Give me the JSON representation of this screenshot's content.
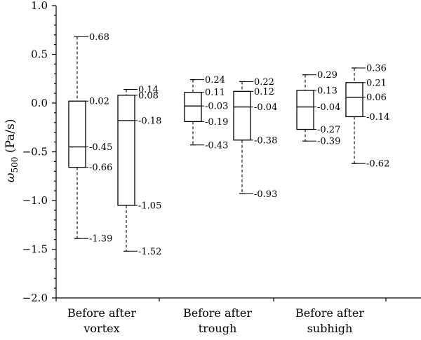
{
  "chart_data": {
    "type": "box",
    "ylabel": "ω500 (Pa/s)",
    "ylabel_symbol": "ω",
    "ylabel_sub": "500",
    "ylabel_unit": " (Pa/s)",
    "ylim": [
      -2.0,
      1.0
    ],
    "yticks": [
      1.0,
      0.5,
      0.0,
      -0.5,
      -1.0,
      -1.5,
      -2.0
    ],
    "ytick_labels": [
      "1.0",
      "0.5",
      "0.0",
      "−0.5",
      "−1.0",
      "−1.5",
      "−2.0"
    ],
    "groups": [
      {
        "label_line1": "Before after",
        "label_line2": "vortex",
        "boxes": [
          {
            "name": "Before",
            "max": 0.68,
            "q3": 0.02,
            "median": -0.45,
            "q1": -0.66,
            "min": -1.39,
            "labels": {
              "max": "0.68",
              "q3": "0.02",
              "median": "-0.45",
              "q1": "-0.66",
              "min": "-1.39"
            }
          },
          {
            "name": "after",
            "max": 0.14,
            "q3": 0.08,
            "median": -0.18,
            "q1": -1.05,
            "min": -1.52,
            "labels": {
              "max": "0.14",
              "q3": "0.08",
              "median": "-0.18",
              "q1": "-1.05",
              "min": "-1.52"
            }
          }
        ]
      },
      {
        "label_line1": "Before after",
        "label_line2": "trough",
        "boxes": [
          {
            "name": "Before",
            "max": 0.24,
            "q3": 0.11,
            "median": -0.03,
            "q1": -0.19,
            "min": -0.43,
            "labels": {
              "max": "0.24",
              "q3": "0.11",
              "median": "-0.03",
              "q1": "-0.19",
              "min": "-0.43"
            }
          },
          {
            "name": "after",
            "max": 0.22,
            "q3": 0.12,
            "median": -0.04,
            "q1": -0.38,
            "min": -0.93,
            "labels": {
              "max": "0.22",
              "q3": "0.12",
              "median": "-0.04",
              "q1": "-0.38",
              "min": "-0.93"
            }
          }
        ]
      },
      {
        "label_line1": "Before after",
        "label_line2": "subhigh",
        "boxes": [
          {
            "name": "Before",
            "max": 0.29,
            "q3": 0.13,
            "median": -0.04,
            "q1": -0.27,
            "min": -0.39,
            "labels": {
              "max": "0.29",
              "q3": "0.13",
              "median": "-0.04",
              "q1": "-0.27",
              "min": "-0.39"
            }
          },
          {
            "name": "after",
            "max": 0.36,
            "q3": 0.21,
            "median": 0.06,
            "q1": -0.14,
            "min": -0.62,
            "labels": {
              "max": "0.36",
              "q3": "0.21",
              "median": "0.06",
              "q1": "-0.14",
              "min": "-0.62"
            }
          }
        ]
      }
    ]
  }
}
